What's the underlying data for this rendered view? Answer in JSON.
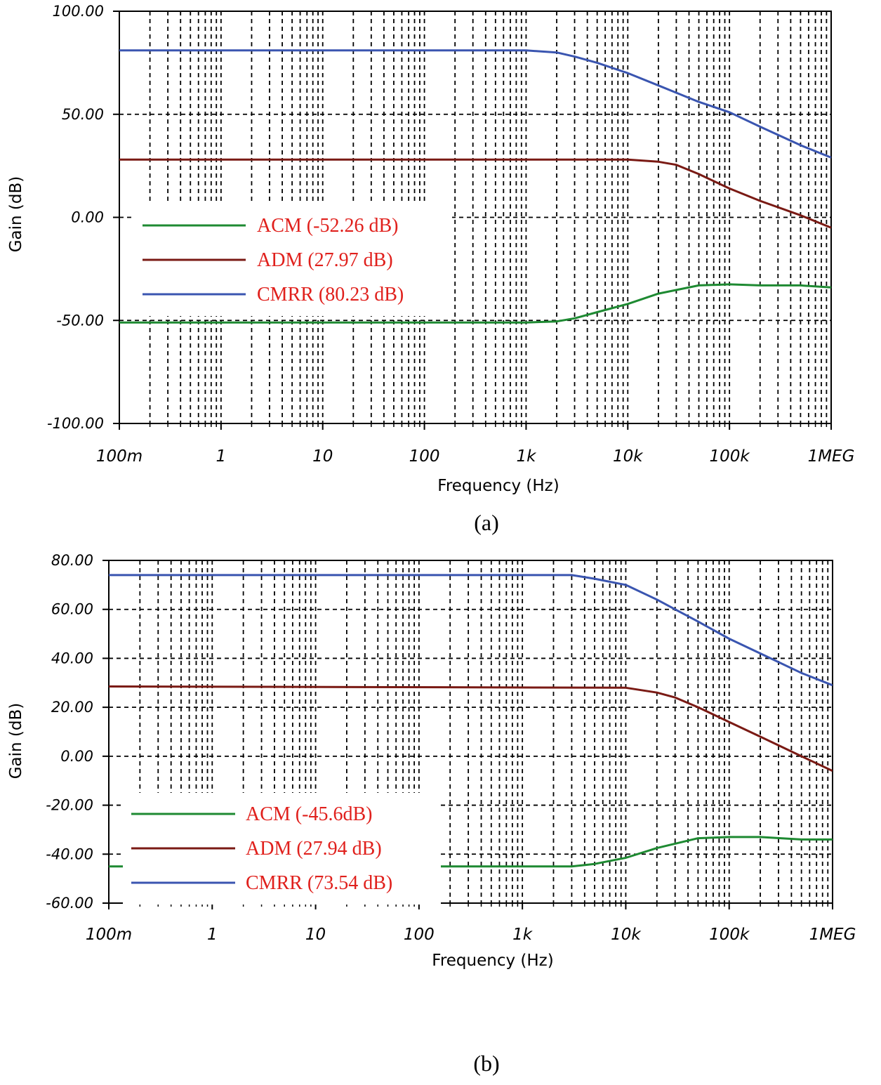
{
  "chart_data": [
    {
      "type": "line",
      "label": "(a)",
      "xlabel": "Frequency (Hz)",
      "ylabel": "Gain (dB)",
      "xscale": "log",
      "xlim": [
        0.1,
        1000000
      ],
      "ylim": [
        -100,
        100
      ],
      "yticks": [
        -100,
        -50,
        0,
        50,
        100
      ],
      "ytick_labels": [
        "-100.00",
        "-50.00",
        "0.00",
        "50.00",
        "100.00"
      ],
      "xticks": [
        0.1,
        1,
        10,
        100,
        1000,
        10000,
        100000,
        1000000
      ],
      "xtick_labels": [
        "100m",
        "1",
        "10",
        "100",
        "1k",
        "10k",
        "100k",
        "1MEG"
      ],
      "grid": true,
      "legend_text_color": "#e0201c",
      "series": [
        {
          "name": "ACM (-52.26 dB)",
          "color": "#1e8a32",
          "x": [
            0.1,
            1000,
            2000,
            3000,
            5000,
            10000,
            20000,
            50000,
            100000,
            200000,
            500000,
            1000000
          ],
          "y": [
            -51,
            -51,
            -50.5,
            -49,
            -46,
            -42,
            -37,
            -33,
            -32.5,
            -33,
            -33,
            -34
          ]
        },
        {
          "name": "ADM (27.97 dB)",
          "color": "#7a1a14",
          "x": [
            0.1,
            10000,
            20000,
            30000,
            50000,
            100000,
            200000,
            500000,
            1000000
          ],
          "y": [
            28,
            28,
            27,
            25.5,
            21,
            14,
            8,
            1,
            -5
          ]
        },
        {
          "name": "CMRR (80.23 dB)",
          "color": "#3a55b0",
          "x": [
            0.1,
            1000,
            2000,
            3000,
            5000,
            10000,
            20000,
            50000,
            100000,
            200000,
            500000,
            1000000
          ],
          "y": [
            81,
            81,
            80,
            78,
            75,
            70,
            64,
            56,
            51,
            44,
            35,
            29
          ]
        }
      ]
    },
    {
      "type": "line",
      "label": "(b)",
      "xlabel": "Frequency (Hz)",
      "ylabel": "Gain (dB)",
      "xscale": "log",
      "xlim": [
        0.1,
        1000000
      ],
      "ylim": [
        -60,
        80
      ],
      "yticks": [
        -60,
        -40,
        -20,
        0,
        20,
        40,
        60,
        80
      ],
      "ytick_labels": [
        "-60.00",
        "-40.00",
        "-20.00",
        "0.00",
        "20.00",
        "40.00",
        "60.00",
        "80.00"
      ],
      "xticks": [
        0.1,
        1,
        10,
        100,
        1000,
        10000,
        100000,
        1000000
      ],
      "xtick_labels": [
        "100m",
        "1",
        "10",
        "100",
        "1k",
        "10k",
        "100k",
        "1MEG"
      ],
      "grid": true,
      "legend_text_color": "#e0201c",
      "series": [
        {
          "name": "ACM (-45.6dB)",
          "color": "#1e8a32",
          "x": [
            0.1,
            3000,
            5000,
            10000,
            20000,
            50000,
            100000,
            200000,
            500000,
            1000000
          ],
          "y": [
            -45,
            -45,
            -44,
            -41.5,
            -37.5,
            -33.5,
            -33,
            -33,
            -34,
            -34
          ]
        },
        {
          "name": "ADM (27.94 dB)",
          "color": "#7a1a14",
          "x": [
            0.1,
            10000,
            20000,
            30000,
            50000,
            100000,
            200000,
            500000,
            1000000
          ],
          "y": [
            28.5,
            28,
            26,
            24,
            20,
            14,
            8,
            0,
            -6
          ]
        },
        {
          "name": "CMRR (73.54 dB)",
          "color": "#3a55b0",
          "x": [
            0.1,
            3000,
            5000,
            10000,
            20000,
            30000,
            50000,
            100000,
            200000,
            500000,
            1000000
          ],
          "y": [
            74,
            74,
            72.5,
            70,
            64,
            60,
            55,
            48,
            42,
            34,
            29
          ]
        }
      ]
    }
  ]
}
